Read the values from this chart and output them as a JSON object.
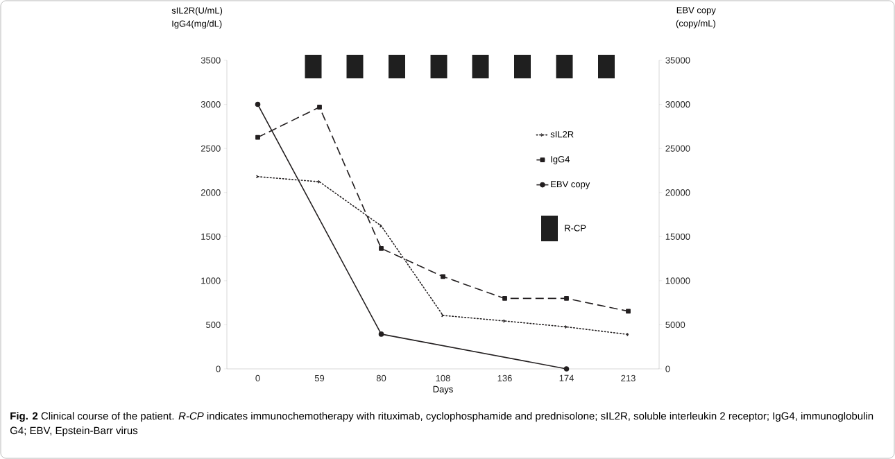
{
  "chart_data": {
    "type": "line",
    "categories": [
      "0",
      "59",
      "80",
      "108",
      "136",
      "174",
      "213"
    ],
    "xlabel": "Days",
    "ylabel": "sIL2R(U/mL) IgG4(mg/dL)",
    "y2label": "EBV copy (copy/mL)",
    "ylim": [
      0,
      3500
    ],
    "yticks": [
      0,
      500,
      1000,
      1500,
      2000,
      2500,
      3000,
      3500
    ],
    "y2lim": [
      0,
      35000
    ],
    "y2ticks": [
      0,
      5000,
      10000,
      15000,
      20000,
      25000,
      30000,
      35000
    ],
    "legend": "right",
    "grid": false,
    "series": [
      {
        "name": "sIL2R",
        "color": "#231f20",
        "marker": "cross",
        "line_style": "dotted",
        "values": [
          2181,
          2122,
          1622,
          606,
          543,
          476,
          390
        ]
      },
      {
        "name": "IgG4",
        "color": "#231f20",
        "marker": "square",
        "line_style": "dashed",
        "values": [
          2626,
          2969,
          1366,
          1047,
          799,
          799,
          654
        ]
      },
      {
        "name": "EBV copy",
        "color": "#231f20",
        "marker": "circle",
        "line_style": "solid",
        "axis": "y2",
        "values": [
          30000,
          null,
          3940,
          null,
          null,
          0,
          null
        ]
      }
    ],
    "annotations": [
      "R-CP",
      "**Fig. 2** Clinical course of the patient. *R-CP* indicates immunochemotherapy with rituximab, cyclophosphamide and prednisolone; sIL2R, soluble interleukin 2 receptor; IgG4, immunoglobulin G4; EBV, Epstein-Barr virus"
    ]
  }
}
